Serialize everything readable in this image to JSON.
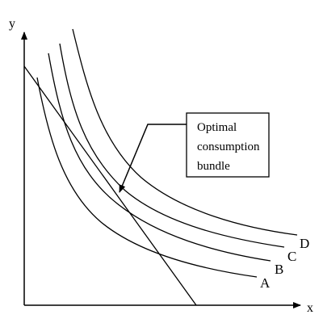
{
  "diagram": {
    "axes": {
      "x_label": "x",
      "y_label": "y"
    },
    "indifference_curves": [
      {
        "label": "A"
      },
      {
        "label": "B"
      },
      {
        "label": "C"
      },
      {
        "label": "D"
      }
    ],
    "budget_line": {},
    "callout": {
      "lines": [
        "Optimal",
        "consumption",
        "bundle"
      ]
    },
    "colors": {
      "stroke": "#000000",
      "background": "#ffffff"
    }
  }
}
